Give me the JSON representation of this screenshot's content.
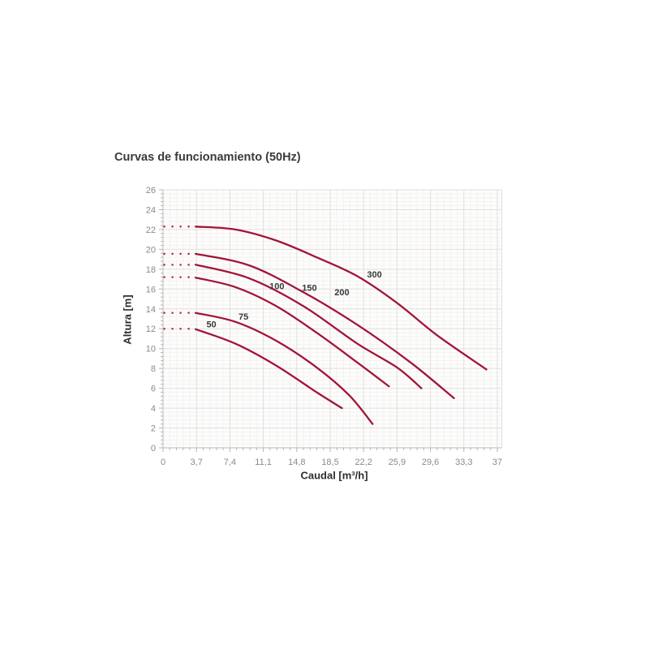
{
  "chart_data": {
    "type": "line",
    "title": "Curvas de funcionamiento (50Hz)",
    "xlabel": "Caudal [m³/h]",
    "ylabel": "Altura [m]",
    "xlim": [
      0,
      37.5
    ],
    "ylim": [
      0,
      26
    ],
    "x_tick_values": [
      0,
      3.7,
      7.4,
      11.1,
      14.8,
      18.5,
      22.2,
      25.9,
      29.6,
      33.3,
      37
    ],
    "x_tick_labels": [
      "0",
      "3,7",
      "7,4",
      "11,1",
      "14,8",
      "18,5",
      "22,2",
      "25,9",
      "29,6",
      "33,3",
      "37"
    ],
    "y_tick_values": [
      0,
      2,
      4,
      6,
      8,
      10,
      12,
      14,
      16,
      18,
      20,
      22,
      24,
      26
    ],
    "y_tick_labels": [
      "0",
      "2",
      "4",
      "6",
      "8",
      "10",
      "12",
      "14",
      "16",
      "18",
      "20",
      "22",
      "24",
      "26"
    ],
    "grid": "major+minor",
    "legend_position": "inline-curve-labels",
    "colors": {
      "curve": "#a21536",
      "grid_major": "#e2dede",
      "grid_minor": "#f4f2f2",
      "axis_line": "#c6c6c6",
      "tick_mark": "#b4b4b4",
      "tick_label": "#8a8a8a",
      "series_label": "#3a3a3a",
      "plot_background": "#fdfdfc"
    },
    "series_note": "Each curve starts with a dotted horizontal segment from x=0 to x≈3.5 at head_m, then a solid falling curve. Units: x in m³/h, y in m.",
    "series": [
      {
        "name": "50",
        "head_m": 12.0,
        "solid": [
          [
            3.6,
            11.95
          ],
          [
            8,
            10.5
          ],
          [
            12.5,
            8.3
          ],
          [
            17,
            5.6
          ],
          [
            19.8,
            4.0
          ]
        ],
        "label_x": 5.35,
        "label_y": 12.45
      },
      {
        "name": "75",
        "head_m": 13.6,
        "solid": [
          [
            3.6,
            13.6
          ],
          [
            8,
            12.7
          ],
          [
            12.5,
            10.8
          ],
          [
            17,
            8.1
          ],
          [
            20.6,
            5.3
          ],
          [
            23.2,
            2.4
          ]
        ],
        "label_x": 8.9,
        "label_y": 13.25
      },
      {
        "name": "100",
        "head_m": 17.2,
        "solid": [
          [
            3.6,
            17.15
          ],
          [
            8,
            16.2
          ],
          [
            12.5,
            14.3
          ],
          [
            17,
            11.6
          ],
          [
            21.5,
            8.6
          ],
          [
            25.0,
            6.2
          ]
        ],
        "label_x": 12.6,
        "label_y": 16.3
      },
      {
        "name": "150",
        "head_m": 18.45,
        "solid": [
          [
            3.6,
            18.45
          ],
          [
            9.5,
            17.1
          ],
          [
            15.5,
            14.3
          ],
          [
            21.5,
            10.5
          ],
          [
            25.9,
            8.1
          ],
          [
            28.6,
            6.0
          ]
        ],
        "label_x": 16.2,
        "label_y": 16.15
      },
      {
        "name": "200",
        "head_m": 19.55,
        "solid": [
          [
            3.6,
            19.55
          ],
          [
            9.5,
            18.4
          ],
          [
            15.5,
            15.7
          ],
          [
            21.5,
            12.4
          ],
          [
            27.4,
            8.6
          ],
          [
            32.2,
            5.0
          ]
        ],
        "label_x": 19.8,
        "label_y": 15.7
      },
      {
        "name": "300",
        "head_m": 22.3,
        "solid": [
          [
            3.6,
            22.3
          ],
          [
            8,
            22.0
          ],
          [
            12.5,
            20.9
          ],
          [
            17,
            19.2
          ],
          [
            21.5,
            17.3
          ],
          [
            25.9,
            14.6
          ],
          [
            30.4,
            11.3
          ],
          [
            35.8,
            7.9
          ]
        ],
        "label_x": 23.4,
        "label_y": 17.5
      }
    ]
  }
}
